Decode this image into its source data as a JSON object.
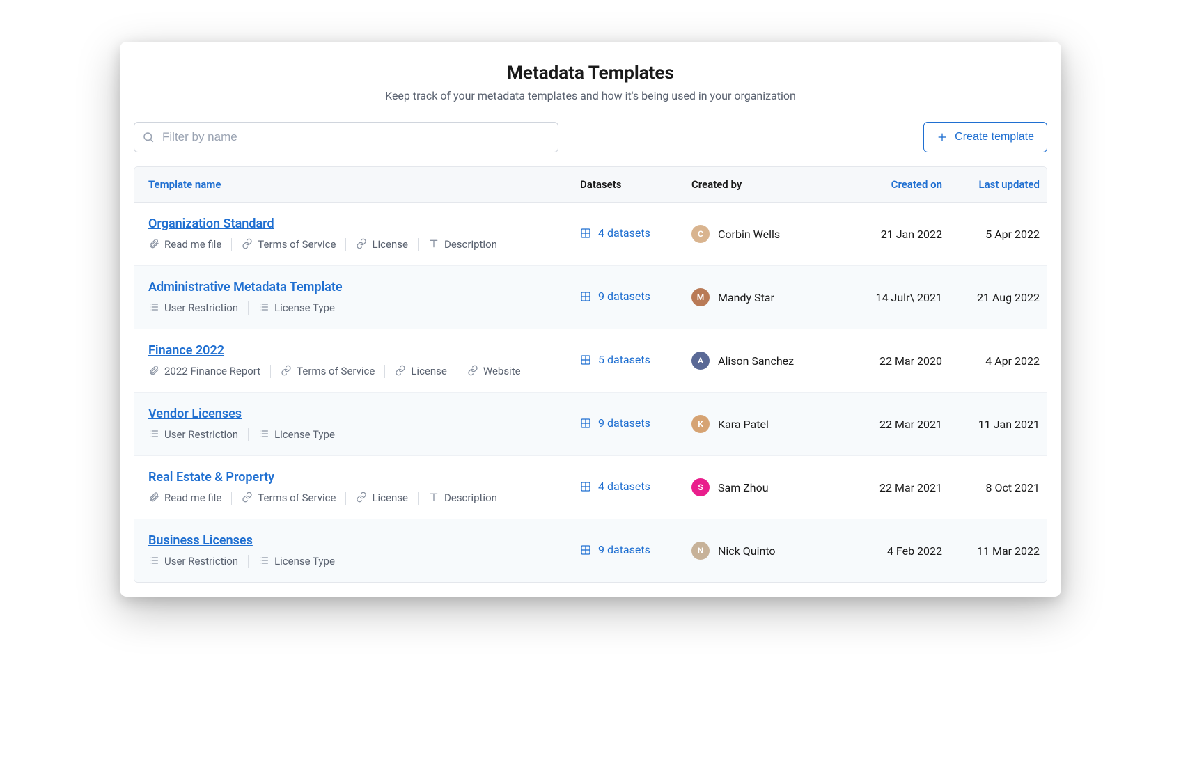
{
  "colors": {
    "accent": "#1f6fd1",
    "text": "#1a1a1a",
    "muted": "#5a6270",
    "border": "#e4e7ec",
    "row_alt_bg": "#f7fafc",
    "header_bg": "#f6f8fa"
  },
  "header": {
    "title": "Metadata Templates",
    "subtitle": "Keep track of your metadata templates and how it's being used in your organization"
  },
  "search": {
    "placeholder": "Filter by name",
    "value": ""
  },
  "create_button_label": "Create template",
  "columns": {
    "name": "Template name",
    "datasets": "Datasets",
    "created_by": "Created by",
    "created_on": "Created on",
    "last_updated": "Last updated"
  },
  "templates": [
    {
      "name": "Organization Standard",
      "tags": [
        {
          "icon": "clip",
          "label": "Read me file"
        },
        {
          "icon": "link",
          "label": "Terms of Service"
        },
        {
          "icon": "link",
          "label": "License"
        },
        {
          "icon": "text",
          "label": "Description"
        }
      ],
      "datasets": "4 datasets",
      "creator": {
        "name": "Corbin Wells",
        "avatar_bg": "#d9b48f",
        "initial": "C"
      },
      "created_on": "21 Jan 2022",
      "last_updated": "5 Apr 2022"
    },
    {
      "name": "Administrative Metadata Template",
      "tags": [
        {
          "icon": "list",
          "label": "User Restriction"
        },
        {
          "icon": "list",
          "label": "License Type"
        }
      ],
      "datasets": "9 datasets",
      "creator": {
        "name": "Mandy Star",
        "avatar_bg": "#b97a56",
        "initial": "M"
      },
      "created_on": "14 Julr\\ 2021",
      "last_updated": "21 Aug 2022"
    },
    {
      "name": "Finance 2022",
      "tags": [
        {
          "icon": "clip",
          "label": "2022 Finance Report"
        },
        {
          "icon": "link",
          "label": "Terms of Service"
        },
        {
          "icon": "link",
          "label": "License"
        },
        {
          "icon": "link",
          "label": "Website"
        }
      ],
      "datasets": "5 datasets",
      "creator": {
        "name": "Alison Sanchez",
        "avatar_bg": "#5a6996",
        "initial": "A"
      },
      "created_on": "22 Mar 2020",
      "last_updated": "4 Apr 2022"
    },
    {
      "name": "Vendor Licenses",
      "tags": [
        {
          "icon": "list",
          "label": "User Restriction"
        },
        {
          "icon": "list",
          "label": "License Type"
        }
      ],
      "datasets": "9 datasets",
      "creator": {
        "name": "Kara Patel",
        "avatar_bg": "#d6a373",
        "initial": "K"
      },
      "created_on": "22 Mar 2021",
      "last_updated": "11 Jan 2021"
    },
    {
      "name": "Real Estate & Property",
      "tags": [
        {
          "icon": "clip",
          "label": "Read me file"
        },
        {
          "icon": "link",
          "label": "Terms of Service"
        },
        {
          "icon": "link",
          "label": "License"
        },
        {
          "icon": "text",
          "label": "Description"
        }
      ],
      "datasets": "4 datasets",
      "creator": {
        "name": "Sam Zhou",
        "avatar_bg": "#e91e8c",
        "initial": "S"
      },
      "created_on": "22 Mar 2021",
      "last_updated": "8 Oct 2021"
    },
    {
      "name": "Business Licenses",
      "tags": [
        {
          "icon": "list",
          "label": "User Restriction"
        },
        {
          "icon": "list",
          "label": "License Type"
        }
      ],
      "datasets": "9 datasets",
      "creator": {
        "name": "Nick Quinto",
        "avatar_bg": "#c7b299",
        "initial": "N"
      },
      "created_on": "4 Feb 2022",
      "last_updated": "11 Mar 2022"
    }
  ]
}
